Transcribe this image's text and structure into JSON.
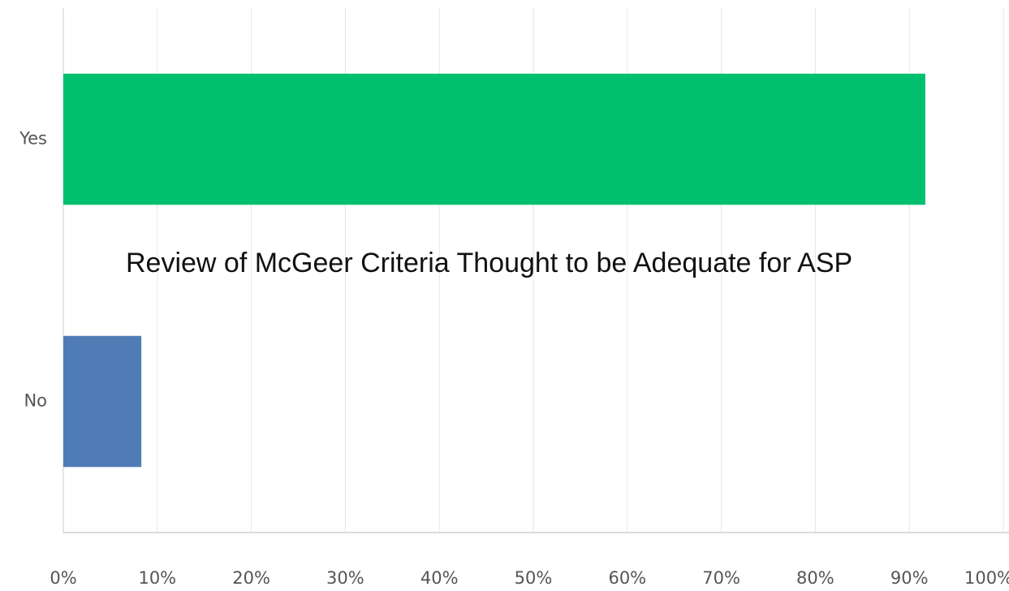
{
  "chart_data": {
    "type": "bar",
    "orientation": "horizontal",
    "title": "Review of McGeer Criteria Thought to be Adequate for ASP",
    "categories": [
      "Yes",
      "No"
    ],
    "values": [
      91.7,
      8.3
    ],
    "colors": [
      "#00bf6f",
      "#507cb6"
    ],
    "xlim": [
      0,
      100
    ],
    "xticks": [
      {
        "value": 0,
        "label": "0%"
      },
      {
        "value": 10,
        "label": "10%"
      },
      {
        "value": 20,
        "label": "20%"
      },
      {
        "value": 30,
        "label": "30%"
      },
      {
        "value": 40,
        "label": "40%"
      },
      {
        "value": 50,
        "label": "50%"
      },
      {
        "value": 60,
        "label": "60%"
      },
      {
        "value": 70,
        "label": "70%"
      },
      {
        "value": 80,
        "label": "80%"
      },
      {
        "value": 90,
        "label": "90%"
      },
      {
        "value": 100,
        "label": "100%"
      }
    ],
    "grid": true
  }
}
